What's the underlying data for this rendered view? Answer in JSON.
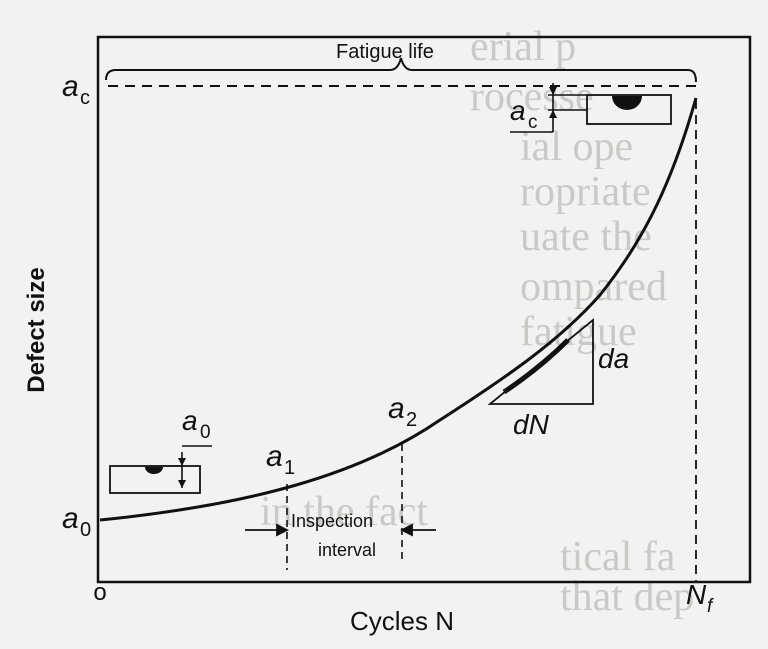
{
  "labels": {
    "fatigue_life": "Fatigue life",
    "y_axis": "Defect size",
    "x_axis": "Cycles N",
    "origin": "o",
    "ac_top": "a",
    "ac_top_sub": "c",
    "ac_inset": "a",
    "ac_inset_sub": "c",
    "a0_left": "a",
    "a0_left_sub": "0",
    "a0_inset": "a",
    "a0_inset_sub": "0",
    "a1": "a",
    "a1_sub": "1",
    "a2": "a",
    "a2_sub": "2",
    "da": "da",
    "dN": "dN",
    "inspection": "Inspection",
    "interval": "interval",
    "nf": "N",
    "nf_sub": "f"
  },
  "colors": {
    "ink": "#111111",
    "paper": "#f2f2f0",
    "ghost_text": "#c9c9c6"
  }
}
